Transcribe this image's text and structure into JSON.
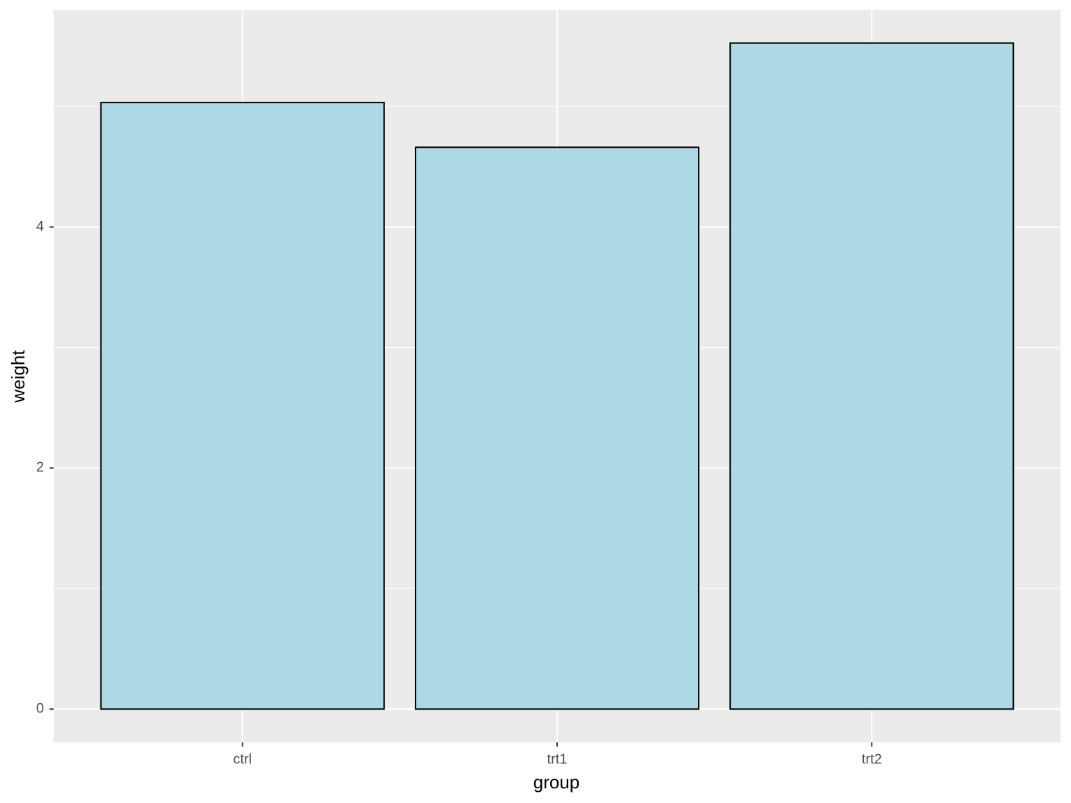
{
  "chart_data": {
    "type": "bar",
    "x_label": "group",
    "y_label": "weight",
    "categories": [
      "ctrl",
      "trt1",
      "trt2"
    ],
    "values": [
      5.032,
      4.661,
      5.526
    ],
    "color": "#add8e6",
    "edgecolor": "#000000",
    "ylim": [
      -0.276,
      5.802
    ],
    "yticks": [
      0,
      2,
      4
    ],
    "minor_yticks": [
      1,
      3,
      5
    ],
    "grid": true
  }
}
